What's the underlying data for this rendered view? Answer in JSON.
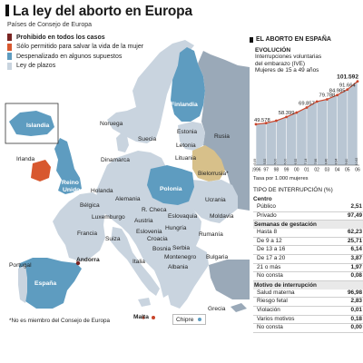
{
  "header": {
    "title": "La ley del aborto en Europa",
    "subtitle": "Países de Consejo de Europa"
  },
  "legend": [
    {
      "label": "Prohibido en todos los casos",
      "color": "#7a2523",
      "bold": true
    },
    {
      "label": "Sólo permitido para salvar la vida de la mujer",
      "color": "#d8582f"
    },
    {
      "label": "Despenalizado en algunos supuestos",
      "color": "#5e9cc0"
    },
    {
      "label": "Ley de plazos",
      "color": "#c9d4df"
    }
  ],
  "colors": {
    "sea": "#ffffff",
    "plazos": "#c9d4df",
    "despenalizado": "#5e9cc0",
    "solo_vida": "#d8582f",
    "prohibido": "#7a2523",
    "bielorrusia": "#d7c08a",
    "non_member": "#c9d4df",
    "outside": "#9aa9b8",
    "accent": "#c8452b"
  },
  "countries": {
    "islandia": "Islandia",
    "irlanda": "Irlanda",
    "reino_unido": "Reino Unido",
    "portugal": "Portugal",
    "espana": "España",
    "andorra": "Andorra",
    "francia": "Francia",
    "belgica": "Bélgica",
    "holanda": "Holanda",
    "luxemburgo": "Luxemburgo",
    "suiza": "Suiza",
    "italia": "Italia",
    "alemania": "Alemania",
    "dinamarca": "Dinamarca",
    "noruega": "Noruega",
    "suecia": "Suecia",
    "finlandia": "Finlandia",
    "estonia": "Estonia",
    "letonia": "Letonia",
    "lituania": "Lituania",
    "rusia": "Rusia",
    "bielorrusia": "Bielorrusia*",
    "polonia": "Polonia",
    "ucrania": "Ucrania",
    "r_checa": "R. Checa",
    "eslovaquia": "Eslovaquia",
    "moldavia": "Moldavia",
    "austria": "Austria",
    "hungria": "Hungría",
    "rumania": "Rumanía",
    "eslovenia": "Eslovenia",
    "croacia": "Croacia",
    "serbia": "Serbia",
    "bosnia": "Bosnia",
    "montenegro": "Montenegro",
    "bulgaria": "Bulgaria",
    "albania": "Albania",
    "grecia": "Grecia",
    "malta": "Malta",
    "chipre": "Chipre"
  },
  "footnote": "*No es miembro del Consejo de Europa",
  "panel": {
    "title": "EL ABORTO EN ESPAÑA",
    "evo_title": "EVOLUCIÓN",
    "evo_line1": "Interrupciones voluntarias",
    "evo_line2": "del embarazo (IVE)",
    "evo_line3": "Mujeres de 15 a 49 años",
    "rate_note": "Tasa por 1.000 mujeres",
    "table_title": "TIPO DE INTERRUPCIÓN (%)"
  },
  "chart_data": {
    "type": "area",
    "x": [
      "1996",
      "97",
      "98",
      "99",
      "00",
      "01",
      "02",
      "03",
      "04",
      "05",
      "06"
    ],
    "values": [
      49578,
      51002,
      53847,
      58399,
      63756,
      69857,
      77125,
      79788,
      84985,
      91664,
      101592
    ],
    "data_labels": [
      {
        "index": 0,
        "text": "49.578"
      },
      {
        "index": 3,
        "text": "58.399"
      },
      {
        "index": 5,
        "text": "69.857"
      },
      {
        "index": 7,
        "text": "79.788"
      },
      {
        "index": 8,
        "text": "84.985"
      },
      {
        "index": 9,
        "text": "91.664"
      },
      {
        "index": 10,
        "text": "101.592"
      }
    ],
    "rate_values": [
      "5,69",
      "5,52",
      "6,00",
      "6,00",
      "6,52",
      "7,14",
      "7,66",
      "8,46",
      "8,94",
      "9,60",
      "10,62"
    ],
    "ylim": [
      0,
      110000
    ]
  },
  "table": [
    {
      "section": "Centro",
      "style": "title",
      "rows": [
        {
          "label": "Público",
          "value": "2,51"
        },
        {
          "label": "Privado",
          "value": "97,49"
        }
      ]
    },
    {
      "section": "Semanas de gestación",
      "style": "head",
      "rows": [
        {
          "label": "Hasta 8",
          "value": "62,23"
        },
        {
          "label": "De 9 a 12",
          "value": "25,71"
        },
        {
          "label": "De 13 a 16",
          "value": "6,14"
        },
        {
          "label": "De 17 a 20",
          "value": "3,87"
        },
        {
          "label": "21 o más",
          "value": "1,97"
        },
        {
          "label": "No consta",
          "value": "0,08"
        }
      ]
    },
    {
      "section": "Motivo de interrupción",
      "style": "head",
      "rows": [
        {
          "label": "Salud materna",
          "value": "96,98"
        },
        {
          "label": "Riesgo fetal",
          "value": "2,83"
        },
        {
          "label": "Violación",
          "value": "0,01"
        },
        {
          "label": "Varios motivos",
          "value": "0,18"
        },
        {
          "label": "No consta",
          "value": "0,00"
        }
      ]
    }
  ]
}
